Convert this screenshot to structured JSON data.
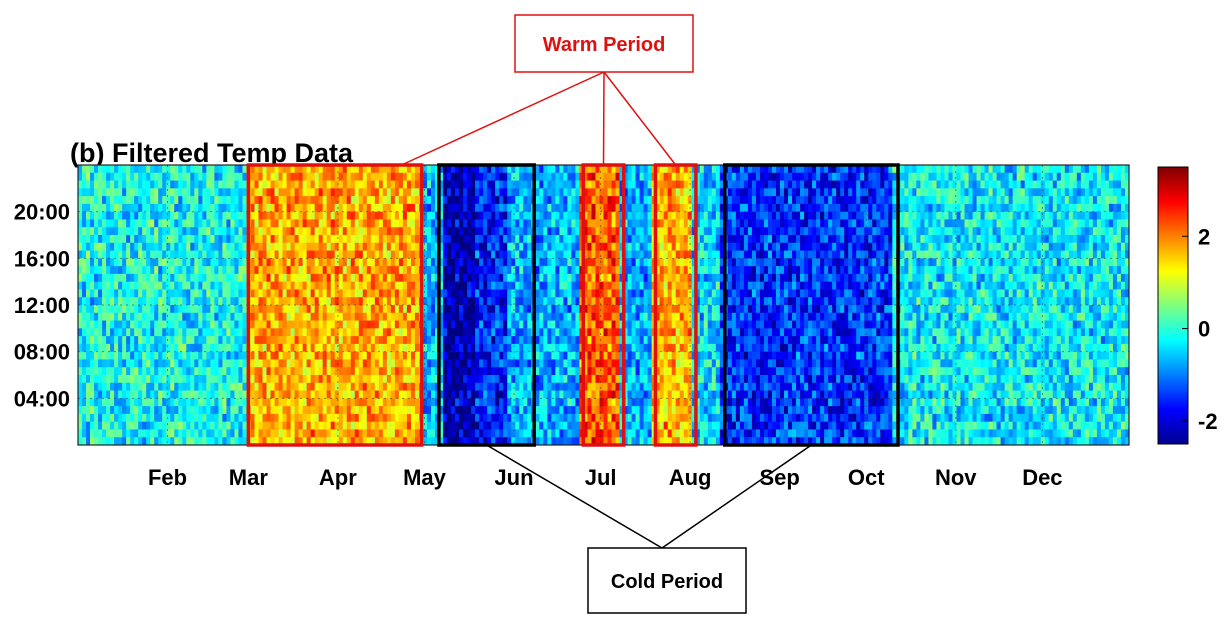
{
  "chart_data": {
    "type": "heatmap",
    "title": "(b) Filtered Temp Data",
    "x_ticks": [
      "Feb",
      "Mar",
      "Apr",
      "May",
      "Jun",
      "Jul",
      "Aug",
      "Sep",
      "Oct",
      "Nov",
      "Dec"
    ],
    "y_ticks": [
      "20:00",
      "16:00",
      "12:00",
      "08:00",
      "04:00"
    ],
    "colorbar": {
      "ticks": [
        2,
        0,
        -2
      ],
      "range": [
        -2.5,
        3.5
      ],
      "colormap": "jet"
    },
    "grid": true,
    "day_of_year_range": [
      1,
      365
    ],
    "hour_range": [
      0,
      24
    ],
    "column_anomaly": [
      {
        "start_doy": 1,
        "end_doy": 60,
        "value": -0.2
      },
      {
        "start_doy": 60,
        "end_doy": 120,
        "value": 1.7
      },
      {
        "start_doy": 120,
        "end_doy": 127,
        "value": -0.6
      },
      {
        "start_doy": 127,
        "end_doy": 138,
        "value": -2.2
      },
      {
        "start_doy": 138,
        "end_doy": 150,
        "value": -1.6
      },
      {
        "start_doy": 150,
        "end_doy": 175,
        "value": -0.7
      },
      {
        "start_doy": 175,
        "end_doy": 188,
        "value": 2.2
      },
      {
        "start_doy": 188,
        "end_doy": 200,
        "value": -0.7
      },
      {
        "start_doy": 200,
        "end_doy": 213,
        "value": 1.7
      },
      {
        "start_doy": 213,
        "end_doy": 223,
        "value": -0.4
      },
      {
        "start_doy": 223,
        "end_doy": 283,
        "value": -1.5
      },
      {
        "start_doy": 283,
        "end_doy": 365,
        "value": -0.3
      }
    ]
  },
  "annotations": {
    "warm": {
      "label": "Warm Period",
      "color": "#e01010",
      "regions": [
        {
          "start_doy": 60,
          "end_doy": 120
        },
        {
          "start_doy": 176,
          "end_doy": 190
        },
        {
          "start_doy": 201,
          "end_doy": 215
        }
      ]
    },
    "cold": {
      "label": "Cold Period",
      "color": "#000000",
      "regions": [
        {
          "start_doy": 126,
          "end_doy": 159
        },
        {
          "start_doy": 225,
          "end_doy": 285
        }
      ]
    }
  }
}
